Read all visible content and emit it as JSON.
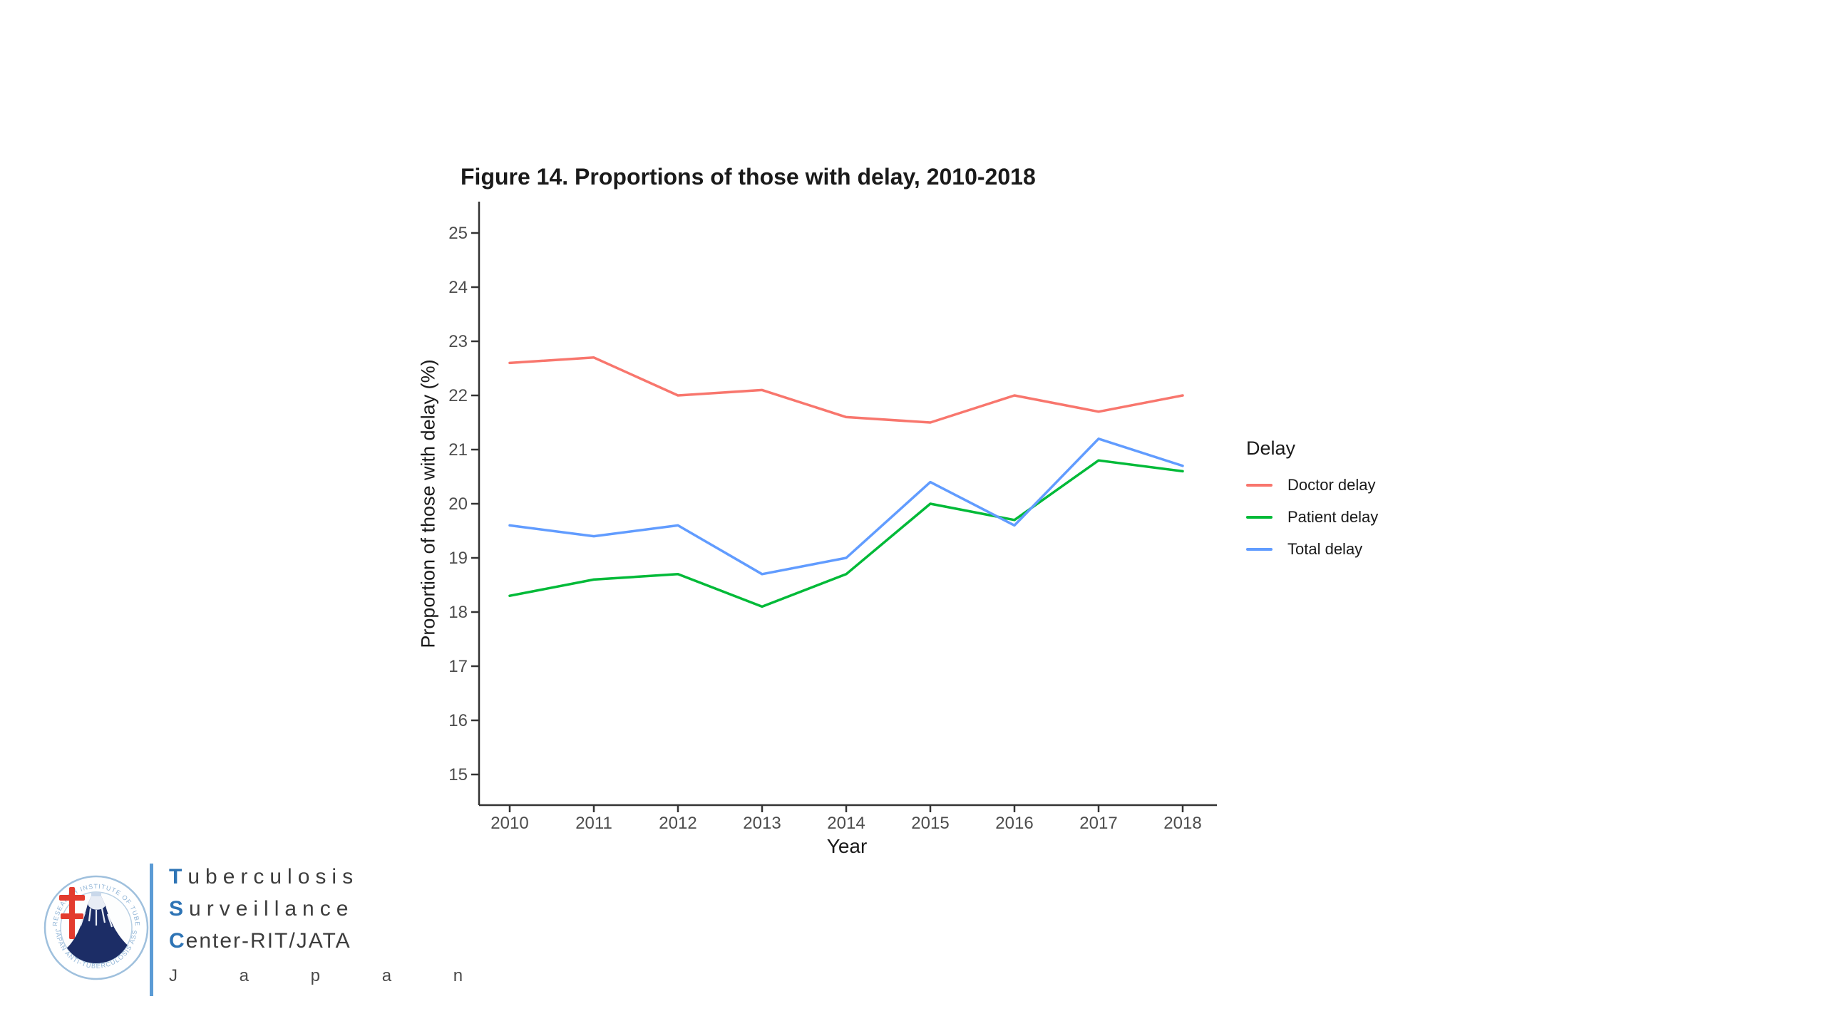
{
  "title": "Figure 14. Proportions of those with delay, 2010-2018",
  "chart_data": {
    "type": "line",
    "x": [
      2010,
      2011,
      2012,
      2013,
      2014,
      2015,
      2016,
      2017,
      2018
    ],
    "xlabel": "Year",
    "ylabel": "Proportion of those with delay (%)",
    "ylim": [
      15,
      25
    ],
    "yticks": [
      15,
      16,
      17,
      18,
      19,
      20,
      21,
      22,
      23,
      24,
      25
    ],
    "grid": false,
    "background": "#ffffff",
    "legend_title": "Delay",
    "legend_position": "right",
    "series": [
      {
        "name": "Doctor delay",
        "color": "#F8766D",
        "values": [
          22.6,
          22.7,
          22.0,
          22.1,
          21.6,
          21.5,
          22.0,
          21.7,
          22.0
        ]
      },
      {
        "name": "Patient delay",
        "color": "#00BA38",
        "values": [
          18.3,
          18.6,
          18.7,
          18.1,
          18.7,
          20.0,
          19.7,
          20.8,
          20.6
        ]
      },
      {
        "name": "Total delay",
        "color": "#619CFF",
        "values": [
          19.6,
          19.4,
          19.6,
          18.7,
          19.0,
          20.4,
          19.6,
          21.2,
          20.7
        ]
      }
    ],
    "axis_color": "#333333",
    "tick_label_color": "#4d4d4d"
  },
  "logo": {
    "ring_top": "RESEARCH INSTITUTE OF TUBERCULOSIS,",
    "ring_bottom": "JAPAN ANTI-TUBERCULOSIS ASSOCIATION",
    "lines": [
      {
        "initial": "T",
        "rest": "uberculosis"
      },
      {
        "initial": "S",
        "rest": "urveillance"
      },
      {
        "initial": "C",
        "rest": "enter-RIT/JATA"
      }
    ],
    "country": "J a p a n",
    "colors": {
      "initial_blue": "#2E74B5",
      "bar_blue": "#5B9BD5",
      "ring_text_blue": "#8FB4D6",
      "mountain_navy": "#1C2D66",
      "cross_red": "#E33B2E"
    }
  }
}
